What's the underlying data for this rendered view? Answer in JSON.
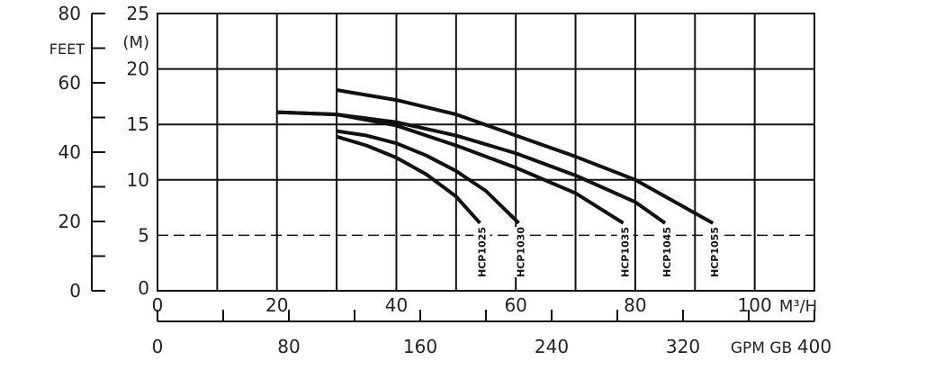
{
  "chart_data": {
    "type": "line",
    "title": "",
    "xlabel": "M³/H",
    "x2label": "GPM GB",
    "ylabel": "(M)",
    "y2label": "FEET",
    "xlim": [
      0,
      110
    ],
    "ylim": [
      0,
      25
    ],
    "x_ticks": [
      "0",
      "20",
      "40",
      "60",
      "80",
      "100"
    ],
    "x_tick_values": [
      0,
      20,
      40,
      60,
      80,
      100
    ],
    "x2_ticks": [
      "0",
      "80",
      "160",
      "240",
      "320",
      "400"
    ],
    "x2_tick_values": [
      0,
      80,
      160,
      240,
      320,
      400
    ],
    "x2lim": [
      0,
      400
    ],
    "y_ticks": [
      "25",
      "20",
      "15",
      "10",
      "5",
      "0"
    ],
    "y_tick_values": [
      25,
      20,
      15,
      10,
      5,
      0
    ],
    "y2_ticks": [
      "80",
      "60",
      "40",
      "20",
      "0"
    ],
    "y2_tick_values": [
      80,
      60,
      40,
      20,
      0
    ],
    "y2lim": [
      0,
      80
    ],
    "grid": true,
    "series": [
      {
        "name": "HCP1025",
        "x": [
          30,
          35,
          40,
          45,
          50,
          54
        ],
        "y": [
          13.9,
          13.1,
          12.0,
          10.5,
          8.5,
          6.1
        ]
      },
      {
        "name": "HCP1030",
        "x": [
          30,
          35,
          40,
          45,
          50,
          55,
          60.5
        ],
        "y": [
          14.4,
          14.0,
          13.3,
          12.2,
          10.8,
          9.0,
          6.1
        ]
      },
      {
        "name": "HCP1035",
        "x": [
          20,
          30,
          40,
          50,
          60,
          70,
          78
        ],
        "y": [
          16.1,
          15.9,
          14.9,
          13.1,
          11.1,
          8.8,
          6.1
        ]
      },
      {
        "name": "HCP1045",
        "x": [
          20,
          30,
          40,
          50,
          60,
          70,
          80,
          85
        ],
        "y": [
          16.1,
          15.9,
          15.2,
          14.0,
          12.4,
          10.4,
          8.0,
          6.1
        ]
      },
      {
        "name": "HCP1055",
        "x": [
          30,
          40,
          50,
          60,
          70,
          80,
          93
        ],
        "y": [
          18.1,
          17.2,
          15.9,
          14.0,
          12.1,
          10.0,
          6.1
        ]
      }
    ]
  }
}
